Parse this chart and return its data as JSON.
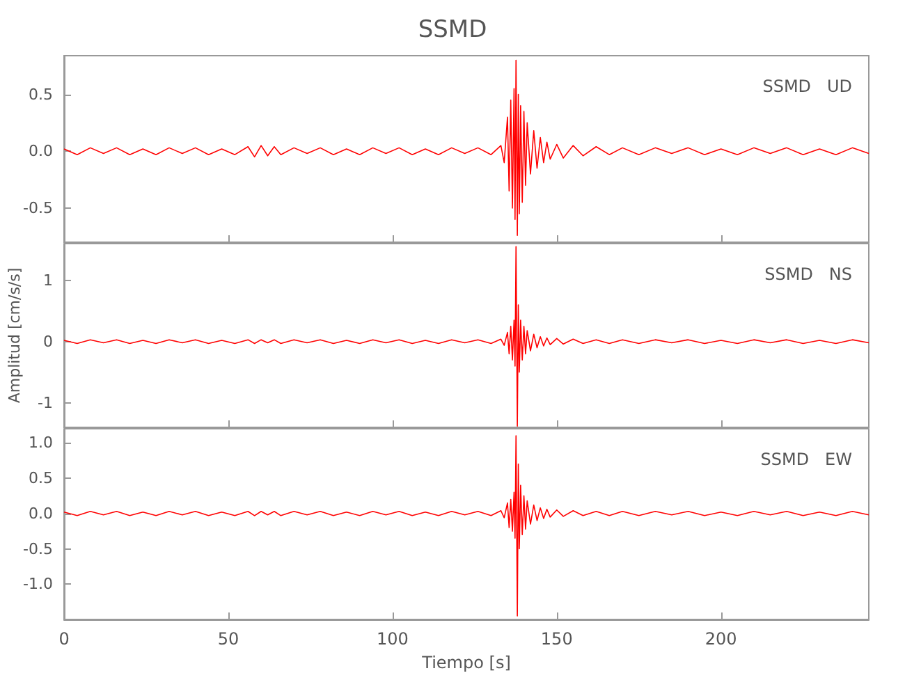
{
  "chart_data": [
    {
      "type": "line",
      "title": "SSMD",
      "annotations": [
        "SSMD   UD"
      ],
      "xlim": [
        0,
        245
      ],
      "xticks": [
        0,
        50,
        100,
        150,
        200
      ],
      "ylim": [
        -0.8,
        0.84
      ],
      "yticks": [
        -0.5,
        {
          "value": 0,
          "label": "0.0"
        },
        0.5
      ],
      "tick_labels": "y",
      "grid": false,
      "x": [
        0,
        4,
        8,
        12,
        16,
        20,
        24,
        28,
        32,
        36,
        40,
        44,
        48,
        52,
        56,
        58,
        60,
        62,
        64,
        66,
        70,
        74,
        78,
        82,
        86,
        90,
        94,
        98,
        102,
        106,
        110,
        114,
        118,
        122,
        126,
        130,
        133,
        134,
        135,
        135.5,
        136,
        136.5,
        137,
        137.3,
        137.6,
        138,
        138.3,
        138.6,
        139,
        139.5,
        140,
        140.5,
        141,
        142,
        143,
        144,
        145,
        146,
        147,
        148,
        150,
        152,
        155,
        158,
        162,
        166,
        170,
        175,
        180,
        185,
        190,
        195,
        200,
        205,
        210,
        215,
        220,
        225,
        230,
        235,
        240,
        245
      ],
      "series": [
        {
          "color": "#ff0000",
          "values": [
            0.02,
            -0.03,
            0.03,
            -0.02,
            0.03,
            -0.03,
            0.02,
            -0.03,
            0.03,
            -0.02,
            0.03,
            -0.03,
            0.02,
            -0.03,
            0.04,
            -0.05,
            0.05,
            -0.04,
            0.04,
            -0.03,
            0.03,
            -0.02,
            0.03,
            -0.03,
            0.02,
            -0.03,
            0.03,
            -0.02,
            0.03,
            -0.03,
            0.02,
            -0.03,
            0.03,
            -0.02,
            0.03,
            -0.03,
            0.05,
            -0.1,
            0.3,
            -0.35,
            0.45,
            -0.5,
            0.55,
            -0.6,
            0.8,
            -0.74,
            0.5,
            -0.55,
            0.4,
            -0.45,
            0.35,
            -0.3,
            0.25,
            -0.2,
            0.18,
            -0.15,
            0.12,
            -0.1,
            0.08,
            -0.07,
            0.06,
            -0.06,
            0.05,
            -0.04,
            0.04,
            -0.03,
            0.03,
            -0.03,
            0.03,
            -0.02,
            0.03,
            -0.03,
            0.02,
            -0.03,
            0.03,
            -0.02,
            0.03,
            -0.03,
            0.02,
            -0.03,
            0.03,
            -0.02
          ]
        }
      ]
    },
    {
      "type": "line",
      "ylabel": "Amplitud [cm/s/s]",
      "annotations": [
        "SSMD   NS"
      ],
      "xlim": [
        0,
        245
      ],
      "xticks": [
        0,
        50,
        100,
        150,
        200
      ],
      "ylim": [
        -1.4,
        1.6
      ],
      "yticks": [
        -1,
        0,
        1
      ],
      "tick_labels": "y",
      "grid": false,
      "x": [
        0,
        4,
        8,
        12,
        16,
        20,
        24,
        28,
        32,
        36,
        40,
        44,
        48,
        52,
        56,
        58,
        60,
        62,
        64,
        66,
        70,
        74,
        78,
        82,
        86,
        90,
        94,
        98,
        102,
        106,
        110,
        114,
        118,
        122,
        126,
        130,
        133,
        134,
        135,
        135.5,
        136,
        136.5,
        137,
        137.3,
        137.6,
        138,
        138.3,
        138.6,
        139,
        139.5,
        140,
        140.5,
        141,
        142,
        143,
        144,
        145,
        146,
        147,
        148,
        150,
        152,
        155,
        158,
        162,
        166,
        170,
        175,
        180,
        185,
        190,
        195,
        200,
        205,
        210,
        215,
        220,
        225,
        230,
        235,
        240,
        245
      ],
      "series": [
        {
          "color": "#ff0000",
          "values": [
            0.02,
            -0.03,
            0.03,
            -0.02,
            0.03,
            -0.03,
            0.02,
            -0.03,
            0.03,
            -0.02,
            0.03,
            -0.03,
            0.02,
            -0.03,
            0.03,
            -0.03,
            0.03,
            -0.02,
            0.03,
            -0.03,
            0.03,
            -0.02,
            0.03,
            -0.03,
            0.02,
            -0.03,
            0.03,
            -0.02,
            0.03,
            -0.03,
            0.02,
            -0.03,
            0.03,
            -0.02,
            0.03,
            -0.03,
            0.04,
            -0.06,
            0.15,
            -0.2,
            0.25,
            -0.3,
            0.35,
            -0.4,
            1.55,
            -1.38,
            0.6,
            -0.5,
            0.35,
            -0.3,
            0.25,
            -0.2,
            0.18,
            -0.15,
            0.12,
            -0.1,
            0.08,
            -0.07,
            0.06,
            -0.05,
            0.05,
            -0.04,
            0.04,
            -0.03,
            0.03,
            -0.03,
            0.03,
            -0.03,
            0.03,
            -0.02,
            0.03,
            -0.03,
            0.02,
            -0.03,
            0.03,
            -0.02,
            0.03,
            -0.03,
            0.02,
            -0.03,
            0.03,
            -0.02
          ]
        }
      ]
    },
    {
      "type": "line",
      "xlabel": "Tiempo [s]",
      "annotations": [
        "SSMD   EW"
      ],
      "xlim": [
        0,
        245
      ],
      "xticks": [
        0,
        50,
        100,
        150,
        200
      ],
      "ylim": [
        -1.5,
        1.2
      ],
      "yticks": [
        {
          "value": -1,
          "label": "-1.0"
        },
        -0.5,
        {
          "value": 0,
          "label": "0.0"
        },
        0.5,
        {
          "value": 1,
          "label": "1.0"
        }
      ],
      "grid": false,
      "x": [
        0,
        4,
        8,
        12,
        16,
        20,
        24,
        28,
        32,
        36,
        40,
        44,
        48,
        52,
        56,
        58,
        60,
        62,
        64,
        66,
        70,
        74,
        78,
        82,
        86,
        90,
        94,
        98,
        102,
        106,
        110,
        114,
        118,
        122,
        126,
        130,
        133,
        134,
        135,
        135.5,
        136,
        136.5,
        137,
        137.3,
        137.6,
        138,
        138.3,
        138.6,
        139,
        139.5,
        140,
        140.5,
        141,
        142,
        143,
        144,
        145,
        146,
        147,
        148,
        150,
        152,
        155,
        158,
        162,
        166,
        170,
        175,
        180,
        185,
        190,
        195,
        200,
        205,
        210,
        215,
        220,
        225,
        230,
        235,
        240,
        245
      ],
      "series": [
        {
          "color": "#ff0000",
          "values": [
            0.02,
            -0.03,
            0.03,
            -0.02,
            0.03,
            -0.03,
            0.02,
            -0.03,
            0.03,
            -0.02,
            0.03,
            -0.03,
            0.02,
            -0.03,
            0.03,
            -0.03,
            0.03,
            -0.02,
            0.03,
            -0.03,
            0.03,
            -0.02,
            0.03,
            -0.03,
            0.02,
            -0.03,
            0.03,
            -0.02,
            0.03,
            -0.03,
            0.02,
            -0.03,
            0.03,
            -0.02,
            0.03,
            -0.03,
            0.04,
            -0.06,
            0.15,
            -0.2,
            0.2,
            -0.25,
            0.3,
            -0.35,
            1.1,
            -1.45,
            0.7,
            -0.5,
            0.4,
            -0.3,
            0.25,
            -0.22,
            0.18,
            -0.15,
            0.12,
            -0.1,
            0.08,
            -0.07,
            0.06,
            -0.05,
            0.05,
            -0.04,
            0.04,
            -0.03,
            0.03,
            -0.03,
            0.03,
            -0.03,
            0.03,
            -0.02,
            0.03,
            -0.03,
            0.02,
            -0.03,
            0.03,
            -0.02,
            0.03,
            -0.03,
            0.02,
            -0.03,
            0.03,
            -0.02
          ]
        }
      ]
    }
  ]
}
